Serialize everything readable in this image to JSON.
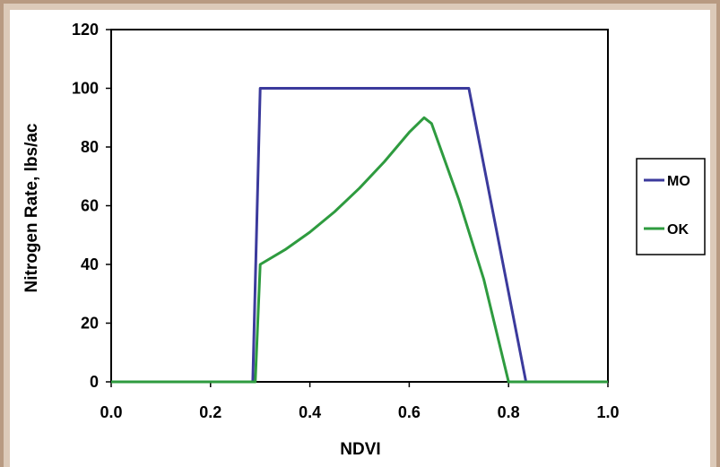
{
  "chart_data": {
    "type": "line",
    "xlabel": "NDVI",
    "ylabel": "Nitrogen Rate, lbs/ac",
    "xlim": [
      0.0,
      1.0
    ],
    "ylim": [
      0,
      120
    ],
    "xticks": [
      "0.0",
      "0.2",
      "0.4",
      "0.6",
      "0.8",
      "1.0"
    ],
    "yticks": [
      "0",
      "20",
      "40",
      "60",
      "80",
      "100",
      "120"
    ],
    "grid": false,
    "legend_position": "right",
    "series": [
      {
        "name": "MO",
        "color": "#3b3a9c",
        "x": [
          0.0,
          0.285,
          0.3,
          0.72,
          0.835,
          1.0
        ],
        "y": [
          0,
          0,
          100,
          100,
          0,
          0
        ]
      },
      {
        "name": "OK",
        "color": "#2e9b3f",
        "x": [
          0.0,
          0.29,
          0.3,
          0.35,
          0.4,
          0.45,
          0.5,
          0.55,
          0.6,
          0.63,
          0.645,
          0.7,
          0.75,
          0.8,
          1.0
        ],
        "y": [
          0,
          0,
          40,
          45,
          51,
          58,
          66,
          75,
          85,
          90,
          88,
          62,
          35,
          0,
          0
        ]
      }
    ]
  }
}
